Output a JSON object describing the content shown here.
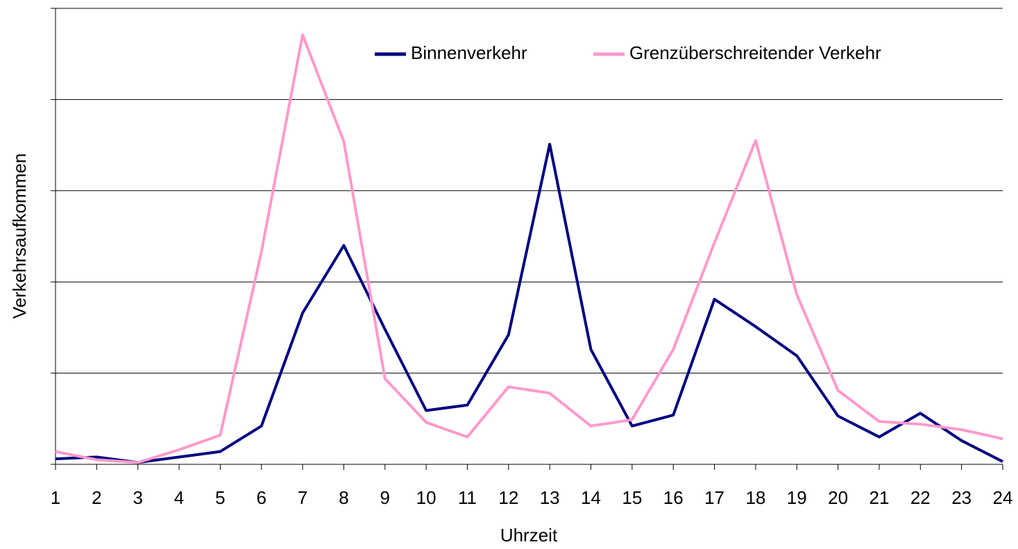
{
  "chart_data": {
    "type": "line",
    "xlabel": "Uhrzeit",
    "ylabel": "Verkehrsaufkommen",
    "categories": [
      "1",
      "2",
      "3",
      "4",
      "5",
      "6",
      "7",
      "8",
      "9",
      "10",
      "11",
      "12",
      "13",
      "14",
      "15",
      "16",
      "17",
      "18",
      "19",
      "20",
      "21",
      "22",
      "23",
      "24"
    ],
    "series": [
      {
        "name": "Binnenverkehr",
        "color": "#000080",
        "values": [
          0.06,
          0.08,
          0.02,
          0.08,
          0.14,
          0.42,
          1.66,
          2.4,
          1.48,
          0.59,
          0.65,
          1.42,
          3.51,
          1.26,
          0.42,
          0.54,
          1.81,
          1.51,
          1.19,
          0.53,
          0.3,
          0.56,
          0.26,
          0.03
        ]
      },
      {
        "name": "Grenzüberschreitender Verkehr",
        "color": "#ff99cc",
        "values": [
          0.14,
          0.05,
          0.02,
          0.16,
          0.32,
          2.33,
          4.71,
          3.54,
          0.94,
          0.46,
          0.3,
          0.85,
          0.78,
          0.42,
          0.49,
          1.26,
          2.43,
          3.55,
          1.86,
          0.81,
          0.47,
          0.44,
          0.38,
          0.28
        ]
      }
    ],
    "ylim": [
      0,
      5
    ],
    "yticks": [
      0,
      1,
      2,
      3,
      4,
      5
    ],
    "grid": true,
    "legend": "top"
  }
}
